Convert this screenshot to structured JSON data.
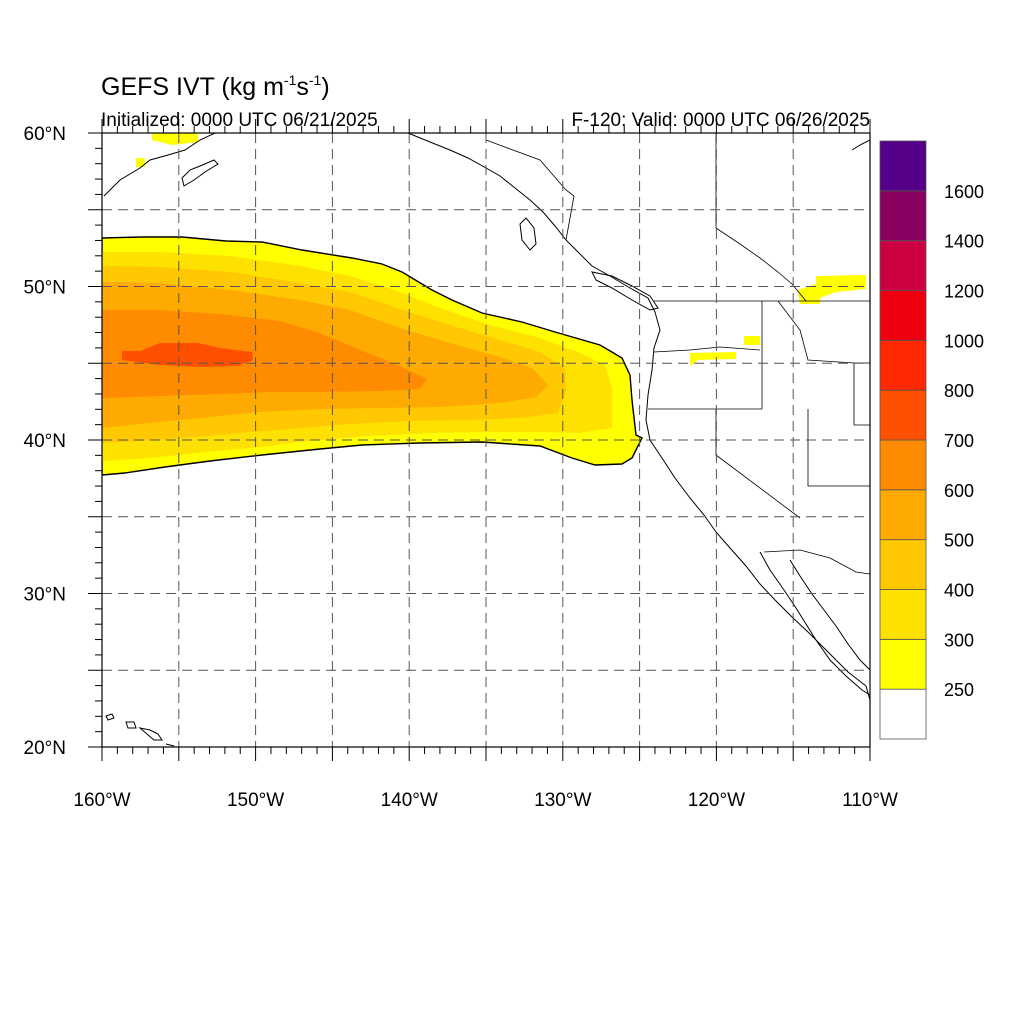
{
  "title": {
    "main": "GEFS IVT (kg m",
    "exp1": "-1",
    "mid": "s",
    "exp2": "-1",
    "end": ")"
  },
  "subtitle_left": "Initialized: 0000 UTC 06/21/2025",
  "subtitle_right": "F-120: Valid: 0000 UTC 06/26/2025",
  "map": {
    "lon_range": [
      -160,
      -110
    ],
    "lat_range": [
      20,
      60
    ],
    "lon_ticks": [
      {
        "lon": -160,
        "label": "160°W"
      },
      {
        "lon": -150,
        "label": "150°W"
      },
      {
        "lon": -140,
        "label": "140°W"
      },
      {
        "lon": -130,
        "label": "130°W"
      },
      {
        "lon": -120,
        "label": "120°W"
      },
      {
        "lon": -110,
        "label": "110°W"
      }
    ],
    "lat_ticks": [
      {
        "lat": 60,
        "label": "60°N"
      },
      {
        "lat": 50,
        "label": "50°N"
      },
      {
        "lat": 40,
        "label": "40°N"
      },
      {
        "lat": 30,
        "label": "30°N"
      },
      {
        "lat": 20,
        "label": "20°N"
      }
    ],
    "grid_lons": [
      -155,
      -150,
      -145,
      -140,
      -135,
      -130,
      -125,
      -120,
      -115
    ],
    "grid_lats": [
      55,
      50,
      45,
      40,
      35,
      30,
      25
    ]
  },
  "colorbar": {
    "colors": [
      "#ffffff",
      "#ffff00",
      "#ffe100",
      "#ffc800",
      "#ffaa00",
      "#ff8c00",
      "#ff5000",
      "#ff2800",
      "#ee0010",
      "#cc0040",
      "#880060",
      "#550088"
    ],
    "labels": [
      "250",
      "300",
      "400",
      "500",
      "600",
      "700",
      "800",
      "1000",
      "1200",
      "1400",
      "1600"
    ]
  },
  "ivt_field": {
    "plume": [
      {
        "lon": -160,
        "lat": 53,
        "value": 250
      },
      {
        "lon": -155,
        "lat": 53.2,
        "value": 250
      },
      {
        "lon": -150,
        "lat": 53,
        "value": 250
      },
      {
        "lon": -145,
        "lat": 52.2,
        "value": 250
      },
      {
        "lon": -140,
        "lat": 50.5,
        "value": 250
      },
      {
        "lon": -135,
        "lat": 49,
        "value": 250
      },
      {
        "lon": -131,
        "lat": 47.7,
        "value": 250
      },
      {
        "lon": -126.5,
        "lat": 45.5,
        "value": 250
      },
      {
        "lon": -125.5,
        "lat": 43,
        "value": 250
      },
      {
        "lon": -125,
        "lat": 40,
        "value": 250
      },
      {
        "lon": -128,
        "lat": 38.5,
        "value": 250
      },
      {
        "lon": -132,
        "lat": 39.5,
        "value": 250
      },
      {
        "lon": -140,
        "lat": 40,
        "value": 250
      },
      {
        "lon": -147,
        "lat": 39.5,
        "value": 250
      },
      {
        "lon": -153,
        "lat": 38.7,
        "value": 250
      },
      {
        "lon": -160,
        "lat": 37.8,
        "value": 250
      },
      {
        "lon": -154,
        "lat": 45.5,
        "value": 700
      },
      {
        "lon": -152,
        "lat": 44,
        "value": 600
      },
      {
        "lon": -135,
        "lat": 43.5,
        "value": 500
      },
      {
        "lon": -128,
        "lat": 44,
        "value": 400
      },
      {
        "lon": -126,
        "lat": 42,
        "value": 300
      }
    ],
    "patches": [
      {
        "lon": -157.5,
        "lat": 58,
        "value": 250
      },
      {
        "lon": -153,
        "lat": 60,
        "value": 250
      },
      {
        "lon": -121,
        "lat": 45.4,
        "value": 250
      },
      {
        "lon": -118.5,
        "lat": 46.5,
        "value": 250
      },
      {
        "lon": -112.5,
        "lat": 50,
        "value": 250
      }
    ]
  }
}
